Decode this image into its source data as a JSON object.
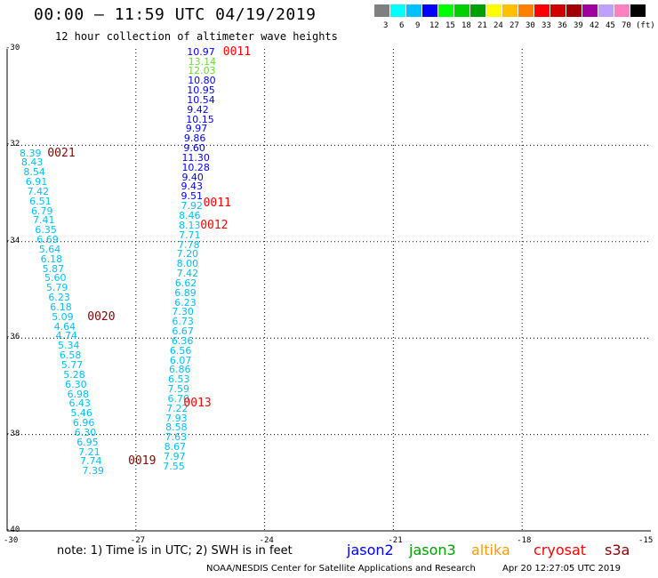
{
  "header": {
    "title": "00:00 – 11:59 UTC 04/19/2019",
    "subtitle": "12 hour collection of altimeter wave heights"
  },
  "colorbar": {
    "unit": "(ft)",
    "colors": [
      "#808080",
      "#00ffff",
      "#00c0ff",
      "#0000ff",
      "#00ff00",
      "#00d000",
      "#00a000",
      "#ffff00",
      "#ffc000",
      "#ff8000",
      "#ff0000",
      "#d00000",
      "#a00000",
      "#a000a0",
      "#c0a0ff",
      "#ff80c0",
      "#000000"
    ],
    "labels": [
      "3",
      "6",
      "9",
      "12",
      "15",
      "18",
      "21",
      "24",
      "27",
      "30",
      "33",
      "36",
      "39",
      "42",
      "45",
      "70",
      "(ft)"
    ]
  },
  "map": {
    "lat_labels": [
      "-30",
      "-32",
      "-34",
      "-36",
      "-38",
      "-40"
    ],
    "lon_labels": [
      "-30",
      "-27",
      "-24",
      "-21",
      "-18",
      "-15"
    ]
  },
  "observations": [
    {
      "value": "10.97",
      "lat": -30.05,
      "lon": -25.81,
      "color": "#0000ff"
    },
    {
      "value": "13.14",
      "lat": -30.25,
      "lon": -25.78,
      "color": "#66dd33"
    },
    {
      "value": "12.03",
      "lat": -30.45,
      "lon": -25.79,
      "color": "#66dd33"
    },
    {
      "value": "10.80",
      "lat": -30.65,
      "lon": -25.79,
      "color": "#0000ff"
    },
    {
      "value": "10.95",
      "lat": -30.85,
      "lon": -25.81,
      "color": "#0000ff"
    },
    {
      "value": "10.54",
      "lat": -31.05,
      "lon": -25.81,
      "color": "#0000ff"
    },
    {
      "value": "9.42",
      "lat": -31.25,
      "lon": -25.81,
      "color": "#0000ff"
    },
    {
      "value": "10.15",
      "lat": -31.45,
      "lon": -25.83,
      "color": "#0000ff"
    },
    {
      "value": "9.97",
      "lat": -31.65,
      "lon": -25.84,
      "color": "#0000ff"
    },
    {
      "value": "9.86",
      "lat": -31.85,
      "lon": -25.88,
      "color": "#0000ff"
    },
    {
      "value": "9.60",
      "lat": -32.05,
      "lon": -25.89,
      "color": "#0000ff"
    },
    {
      "value": "11.30",
      "lat": -32.25,
      "lon": -25.93,
      "color": "#0000ff"
    },
    {
      "value": "10.28",
      "lat": -32.45,
      "lon": -25.93,
      "color": "#0000ff"
    },
    {
      "value": "9.40",
      "lat": -32.65,
      "lon": -25.93,
      "color": "#0000ff"
    },
    {
      "value": "9.43",
      "lat": -32.85,
      "lon": -25.95,
      "color": "#0000ff"
    },
    {
      "value": "9.51",
      "lat": -33.05,
      "lon": -25.95,
      "color": "#0000ff"
    },
    {
      "value": "7.92",
      "lat": -33.25,
      "lon": -25.95,
      "color": "#00c0ff"
    },
    {
      "value": "8.46",
      "lat": -33.45,
      "lon": -26.0,
      "color": "#00c0ff"
    },
    {
      "value": "8.13",
      "lat": -33.65,
      "lon": -26.0,
      "color": "#00c0ff"
    },
    {
      "value": "7.71",
      "lat": -33.85,
      "lon": -26.0,
      "color": "#00c0ff"
    },
    {
      "value": "7.78",
      "lat": -34.05,
      "lon": -26.02,
      "color": "#00c0ff"
    },
    {
      "value": "7.20",
      "lat": -34.25,
      "lon": -26.05,
      "color": "#00c0ff"
    },
    {
      "value": "8.00",
      "lat": -34.45,
      "lon": -26.05,
      "color": "#00c0ff"
    },
    {
      "value": "7.42",
      "lat": -34.65,
      "lon": -26.05,
      "color": "#00c0ff"
    },
    {
      "value": "6.62",
      "lat": -34.85,
      "lon": -26.09,
      "color": "#00c0ff"
    },
    {
      "value": "6.89",
      "lat": -35.05,
      "lon": -26.1,
      "color": "#00c0ff"
    },
    {
      "value": "6.23",
      "lat": -35.25,
      "lon": -26.1,
      "color": "#00c0ff"
    },
    {
      "value": "7.30",
      "lat": -35.45,
      "lon": -26.16,
      "color": "#00c0ff"
    },
    {
      "value": "6.73",
      "lat": -35.65,
      "lon": -26.16,
      "color": "#00c0ff"
    },
    {
      "value": "6.67",
      "lat": -35.85,
      "lon": -26.16,
      "color": "#00c0ff"
    },
    {
      "value": "6.36",
      "lat": -36.05,
      "lon": -26.17,
      "color": "#00c0ff"
    },
    {
      "value": "6.56",
      "lat": -36.25,
      "lon": -26.21,
      "color": "#00c0ff"
    },
    {
      "value": "6.07",
      "lat": -36.45,
      "lon": -26.21,
      "color": "#00c0ff"
    },
    {
      "value": "6.86",
      "lat": -36.65,
      "lon": -26.23,
      "color": "#00c0ff"
    },
    {
      "value": "6.53",
      "lat": -36.85,
      "lon": -26.25,
      "color": "#00c0ff"
    },
    {
      "value": "7.59",
      "lat": -37.05,
      "lon": -26.26,
      "color": "#00c0ff"
    },
    {
      "value": "6.70",
      "lat": -37.25,
      "lon": -26.26,
      "color": "#00c0ff"
    },
    {
      "value": "7.22",
      "lat": -37.45,
      "lon": -26.29,
      "color": "#00c0ff"
    },
    {
      "value": "7.93",
      "lat": -37.65,
      "lon": -26.31,
      "color": "#00c0ff"
    },
    {
      "value": "8.58",
      "lat": -37.85,
      "lon": -26.31,
      "color": "#00c0ff"
    },
    {
      "value": "7.63",
      "lat": -38.05,
      "lon": -26.32,
      "color": "#00c0ff"
    },
    {
      "value": "8.67",
      "lat": -38.25,
      "lon": -26.34,
      "color": "#00c0ff"
    },
    {
      "value": "7.97",
      "lat": -38.45,
      "lon": -26.35,
      "color": "#00c0ff"
    },
    {
      "value": "7.55",
      "lat": -38.65,
      "lon": -26.37,
      "color": "#00c0ff"
    },
    {
      "value": "8.39",
      "lat": -32.15,
      "lon": -29.71,
      "color": "#00c0ff"
    },
    {
      "value": "8.43",
      "lat": -32.35,
      "lon": -29.67,
      "color": "#00c0ff"
    },
    {
      "value": "8.54",
      "lat": -32.55,
      "lon": -29.62,
      "color": "#00c0ff"
    },
    {
      "value": "6.91",
      "lat": -32.75,
      "lon": -29.57,
      "color": "#00c0ff"
    },
    {
      "value": "7.42",
      "lat": -32.95,
      "lon": -29.53,
      "color": "#00c0ff"
    },
    {
      "value": "6.51",
      "lat": -33.15,
      "lon": -29.48,
      "color": "#00c0ff"
    },
    {
      "value": "6.79",
      "lat": -33.35,
      "lon": -29.44,
      "color": "#00c0ff"
    },
    {
      "value": "7.41",
      "lat": -33.55,
      "lon": -29.4,
      "color": "#00c0ff"
    },
    {
      "value": "6.35",
      "lat": -33.75,
      "lon": -29.35,
      "color": "#00c0ff"
    },
    {
      "value": "6.69",
      "lat": -33.95,
      "lon": -29.31,
      "color": "#00c0ff"
    },
    {
      "value": "5.64",
      "lat": -34.15,
      "lon": -29.26,
      "color": "#00c0ff"
    },
    {
      "value": "6.18",
      "lat": -34.35,
      "lon": -29.22,
      "color": "#00c0ff"
    },
    {
      "value": "5.87",
      "lat": -34.55,
      "lon": -29.18,
      "color": "#00c0ff"
    },
    {
      "value": "5.60",
      "lat": -34.75,
      "lon": -29.13,
      "color": "#00c0ff"
    },
    {
      "value": "5.79",
      "lat": -34.95,
      "lon": -29.09,
      "color": "#00c0ff"
    },
    {
      "value": "6.23",
      "lat": -35.15,
      "lon": -29.04,
      "color": "#00c0ff"
    },
    {
      "value": "6.18",
      "lat": -35.35,
      "lon": -29.0,
      "color": "#00c0ff"
    },
    {
      "value": "5.09",
      "lat": -35.55,
      "lon": -28.96,
      "color": "#00c0ff"
    },
    {
      "value": "4.64",
      "lat": -35.75,
      "lon": -28.91,
      "color": "#00c0ff"
    },
    {
      "value": "4.74",
      "lat": -35.95,
      "lon": -28.87,
      "color": "#00c0ff"
    },
    {
      "value": "5.34",
      "lat": -36.15,
      "lon": -28.82,
      "color": "#00c0ff"
    },
    {
      "value": "6.58",
      "lat": -36.35,
      "lon": -28.78,
      "color": "#00c0ff"
    },
    {
      "value": "5.77",
      "lat": -36.55,
      "lon": -28.74,
      "color": "#00c0ff"
    },
    {
      "value": "5.28",
      "lat": -36.75,
      "lon": -28.69,
      "color": "#00c0ff"
    },
    {
      "value": "6.30",
      "lat": -36.95,
      "lon": -28.65,
      "color": "#00c0ff"
    },
    {
      "value": "6.98",
      "lat": -37.15,
      "lon": -28.6,
      "color": "#00c0ff"
    },
    {
      "value": "6.43",
      "lat": -37.35,
      "lon": -28.56,
      "color": "#00c0ff"
    },
    {
      "value": "5.46",
      "lat": -37.55,
      "lon": -28.52,
      "color": "#00c0ff"
    },
    {
      "value": "6.96",
      "lat": -37.75,
      "lon": -28.47,
      "color": "#00c0ff"
    },
    {
      "value": "6.30",
      "lat": -37.95,
      "lon": -28.43,
      "color": "#00c0ff"
    },
    {
      "value": "6.95",
      "lat": -38.15,
      "lon": -28.38,
      "color": "#00c0ff"
    },
    {
      "value": "7.21",
      "lat": -38.35,
      "lon": -28.34,
      "color": "#00c0ff"
    },
    {
      "value": "7.74",
      "lat": -38.55,
      "lon": -28.3,
      "color": "#00c0ff"
    },
    {
      "value": "7.39",
      "lat": -38.75,
      "lon": -28.25,
      "color": "#00c0ff"
    }
  ],
  "time_marks": [
    {
      "time": "0011",
      "lat": -30.05,
      "lon": -24.97,
      "color": "#ff0000"
    },
    {
      "time": "0011",
      "lat": -33.2,
      "lon": -25.43,
      "color": "#ff0000"
    },
    {
      "time": "0012",
      "lat": -33.65,
      "lon": -25.5,
      "color": "#ff0000"
    },
    {
      "time": "0013",
      "lat": -37.35,
      "lon": -25.89,
      "color": "#ff0000"
    },
    {
      "time": "0021",
      "lat": -32.15,
      "lon": -29.06,
      "color": "#8b0000"
    },
    {
      "time": "0020",
      "lat": -35.55,
      "lon": -28.13,
      "color": "#8b0000"
    },
    {
      "time": "0019",
      "lat": -38.55,
      "lon": -27.18,
      "color": "#8b0000"
    }
  ],
  "footer": {
    "note": "note:  1) Time is in UTC; 2) SWH is in feet",
    "legend": [
      {
        "name": "jason2",
        "color": "#0000ff"
      },
      {
        "name": "jason3",
        "color": "#00a000"
      },
      {
        "name": "altika",
        "color": "#ff9900"
      },
      {
        "name": "cryosat",
        "color": "#ff0000"
      },
      {
        "name": "s3a",
        "color": "#8b0000"
      }
    ],
    "credit": "NOAA/NESDIS Center for Satellite Applications and Research",
    "timestamp": "Apr 20 12:27:05 UTC 2019"
  }
}
